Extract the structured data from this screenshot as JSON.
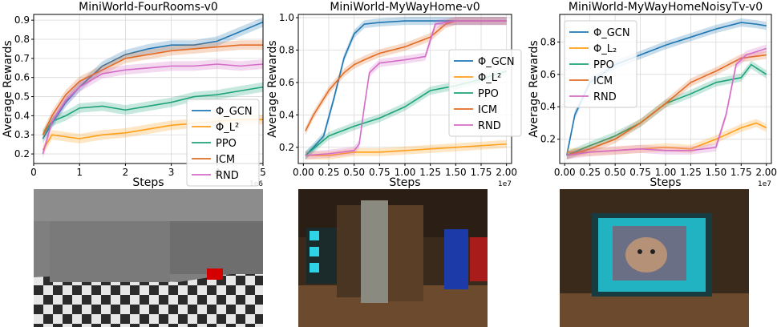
{
  "chart_data": [
    {
      "type": "line",
      "title": "MiniWorld-FourRooms-v0",
      "xlabel": "Steps",
      "ylabel": "Average Rewards",
      "x_offset_label": "1e6",
      "xlim": [
        0,
        5
      ],
      "ylim": [
        0.15,
        0.93
      ],
      "xticks": [
        "0",
        "1",
        "2",
        "3",
        "4",
        "5"
      ],
      "yticks": [
        "0.2",
        "0.3",
        "0.4",
        "0.5",
        "0.6",
        "0.7",
        "0.8",
        "0.9"
      ],
      "grid": true,
      "legend_position": "lower-right",
      "series": [
        {
          "name": "Φ_GCN",
          "color": "#1f77b4",
          "x": [
            0.2,
            0.4,
            0.7,
            1.0,
            1.5,
            2.0,
            2.5,
            3.0,
            3.5,
            4.0,
            4.4,
            4.7,
            5.0
          ],
          "y": [
            0.28,
            0.36,
            0.47,
            0.55,
            0.66,
            0.72,
            0.75,
            0.77,
            0.77,
            0.79,
            0.83,
            0.86,
            0.89
          ]
        },
        {
          "name": "Φ_L²",
          "color": "#ff9f1a",
          "x": [
            0.2,
            0.4,
            0.7,
            1.0,
            1.5,
            2.0,
            2.5,
            3.0,
            3.5,
            4.0,
            4.5,
            5.0
          ],
          "y": [
            0.22,
            0.3,
            0.29,
            0.28,
            0.3,
            0.31,
            0.33,
            0.35,
            0.36,
            0.37,
            0.38,
            0.38
          ]
        },
        {
          "name": "PPO",
          "color": "#1ea37a",
          "x": [
            0.2,
            0.4,
            0.7,
            1.0,
            1.5,
            2.0,
            2.5,
            3.0,
            3.5,
            4.0,
            4.5,
            5.0
          ],
          "y": [
            0.3,
            0.37,
            0.4,
            0.44,
            0.45,
            0.43,
            0.45,
            0.47,
            0.5,
            0.51,
            0.53,
            0.55
          ]
        },
        {
          "name": "ICM",
          "color": "#e36b24",
          "x": [
            0.2,
            0.4,
            0.7,
            1.0,
            1.5,
            2.0,
            2.5,
            3.0,
            3.5,
            4.0,
            4.5,
            5.0
          ],
          "y": [
            0.3,
            0.4,
            0.51,
            0.58,
            0.64,
            0.7,
            0.72,
            0.74,
            0.75,
            0.76,
            0.77,
            0.77
          ]
        },
        {
          "name": "RND",
          "color": "#d46cc7",
          "x": [
            0.2,
            0.4,
            0.7,
            1.0,
            1.5,
            2.0,
            2.5,
            3.0,
            3.5,
            4.0,
            4.5,
            5.0
          ],
          "y": [
            0.2,
            0.37,
            0.48,
            0.55,
            0.62,
            0.64,
            0.65,
            0.66,
            0.66,
            0.67,
            0.66,
            0.67
          ]
        }
      ]
    },
    {
      "type": "line",
      "title": "MiniWorld-MyWayHome-v0",
      "xlabel": "Steps",
      "ylabel": "Average Rewards",
      "x_offset_label": "1e7",
      "xlim": [
        -0.05,
        2.05
      ],
      "ylim": [
        0.1,
        1.02
      ],
      "xticks": [
        "0.00",
        "0.25",
        "0.50",
        "0.75",
        "1.00",
        "1.25",
        "1.50",
        "1.75",
        "2.00"
      ],
      "yticks": [
        "0.2",
        "0.4",
        "0.6",
        "0.8",
        "1.0"
      ],
      "grid": true,
      "legend_position": "center-right",
      "series": [
        {
          "name": "Φ_GCN",
          "color": "#1f77b4",
          "x": [
            0.02,
            0.1,
            0.2,
            0.3,
            0.4,
            0.5,
            0.6,
            0.75,
            1.0,
            1.25,
            1.5,
            1.75,
            2.0
          ],
          "y": [
            0.15,
            0.2,
            0.27,
            0.5,
            0.75,
            0.9,
            0.96,
            0.97,
            0.98,
            0.98,
            0.98,
            0.98,
            0.98
          ]
        },
        {
          "name": "Φ_L²",
          "color": "#ff9f1a",
          "x": [
            0.02,
            0.25,
            0.5,
            0.75,
            1.0,
            1.25,
            1.5,
            1.75,
            2.0
          ],
          "y": [
            0.15,
            0.15,
            0.17,
            0.17,
            0.18,
            0.19,
            0.2,
            0.21,
            0.22
          ]
        },
        {
          "name": "PPO",
          "color": "#1ea37a",
          "x": [
            0.02,
            0.25,
            0.5,
            0.75,
            1.0,
            1.25,
            1.5,
            1.75,
            2.0
          ],
          "y": [
            0.15,
            0.27,
            0.33,
            0.38,
            0.45,
            0.55,
            0.58,
            0.62,
            0.67
          ]
        },
        {
          "name": "ICM",
          "color": "#e36b24",
          "x": [
            0.02,
            0.1,
            0.25,
            0.4,
            0.5,
            0.6,
            0.75,
            1.0,
            1.25,
            1.4,
            1.5,
            2.0
          ],
          "y": [
            0.3,
            0.4,
            0.55,
            0.66,
            0.71,
            0.74,
            0.78,
            0.82,
            0.88,
            0.96,
            0.98,
            0.98
          ]
        },
        {
          "name": "RND",
          "color": "#d46cc7",
          "x": [
            0.02,
            0.25,
            0.5,
            0.55,
            0.6,
            0.65,
            0.75,
            1.0,
            1.2,
            1.3,
            1.5,
            2.0
          ],
          "y": [
            0.15,
            0.16,
            0.18,
            0.22,
            0.45,
            0.66,
            0.72,
            0.74,
            0.76,
            0.96,
            0.98,
            0.98
          ]
        }
      ]
    },
    {
      "type": "line",
      "title": "MiniWorld-MyWayHomeNoisyTv-v0",
      "xlabel": "Steps",
      "ylabel": "Average Rewards",
      "x_offset_label": "1e7",
      "xlim": [
        -0.05,
        2.05
      ],
      "ylim": [
        0.05,
        0.97
      ],
      "xticks": [
        "0.00",
        "0.25",
        "0.50",
        "0.75",
        "1.00",
        "1.25",
        "1.50",
        "1.75",
        "2.00"
      ],
      "yticks": [
        "0.2",
        "0.4",
        "0.6",
        "0.8"
      ],
      "grid": true,
      "legend_position": "top-left",
      "series": [
        {
          "name": "Φ_GCN",
          "color": "#1f77b4",
          "x": [
            0.02,
            0.1,
            0.25,
            0.5,
            0.75,
            1.0,
            1.25,
            1.5,
            1.75,
            1.9,
            2.0
          ],
          "y": [
            0.1,
            0.35,
            0.55,
            0.66,
            0.72,
            0.78,
            0.83,
            0.88,
            0.92,
            0.91,
            0.9
          ]
        },
        {
          "name": "Φ_L₂",
          "color": "#ff9f1a",
          "x": [
            0.02,
            0.25,
            0.5,
            0.75,
            1.0,
            1.25,
            1.5,
            1.75,
            1.9,
            2.0
          ],
          "y": [
            0.12,
            0.12,
            0.13,
            0.14,
            0.15,
            0.14,
            0.2,
            0.27,
            0.3,
            0.27
          ]
        },
        {
          "name": "PPO",
          "color": "#1ea37a",
          "x": [
            0.02,
            0.25,
            0.5,
            0.75,
            1.0,
            1.25,
            1.5,
            1.75,
            1.85,
            2.0
          ],
          "y": [
            0.1,
            0.16,
            0.22,
            0.3,
            0.42,
            0.48,
            0.55,
            0.58,
            0.66,
            0.6
          ]
        },
        {
          "name": "ICM",
          "color": "#e36b24",
          "x": [
            0.02,
            0.25,
            0.5,
            0.75,
            1.0,
            1.25,
            1.5,
            1.75,
            2.0
          ],
          "y": [
            0.1,
            0.14,
            0.2,
            0.3,
            0.42,
            0.55,
            0.62,
            0.7,
            0.72
          ]
        },
        {
          "name": "RND",
          "color": "#d46cc7",
          "x": [
            0.02,
            0.25,
            0.5,
            0.75,
            1.0,
            1.25,
            1.5,
            1.6,
            1.7,
            1.8,
            2.0
          ],
          "y": [
            0.1,
            0.12,
            0.13,
            0.14,
            0.13,
            0.13,
            0.15,
            0.35,
            0.66,
            0.72,
            0.76
          ]
        }
      ]
    }
  ]
}
